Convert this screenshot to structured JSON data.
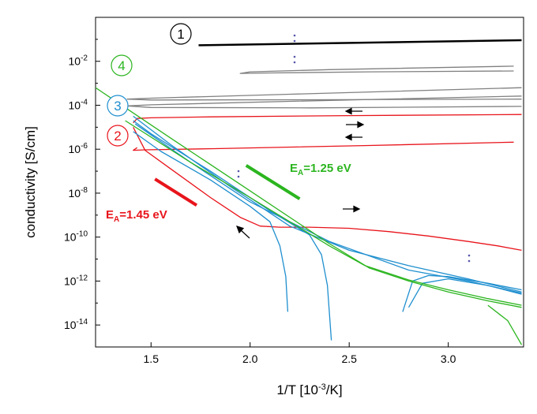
{
  "chart_data": {
    "type": "line",
    "xlabel": "1/T [10",
    "xlabel_sup": "-3",
    "xlabel_tail": "/K]",
    "ylabel": "conductivity [S/cm]",
    "xlim": [
      1.22,
      3.38
    ],
    "ylog": true,
    "ylim_exp": [
      -15,
      0
    ],
    "x_ticks": [
      1.5,
      2.0,
      2.5,
      3.0
    ],
    "x_tick_labels": [
      "1.5",
      "2.0",
      "2.5",
      "3.0"
    ],
    "y_ticks_exp": [
      -2,
      -4,
      -6,
      -8,
      -10,
      -12,
      -14
    ],
    "y_tick_labels": [
      "10",
      "10",
      "10",
      "10",
      "10",
      "10",
      "10"
    ],
    "y_tick_sups": [
      "-2",
      "-4",
      "-6",
      "-8",
      "-10",
      "-12",
      "-14"
    ],
    "colors": {
      "c1": "#000000",
      "gray": "#808080",
      "red": "#e8141b",
      "blue": "#1f8fcf",
      "green": "#2bb51f",
      "dots": "#5555aa"
    },
    "series": [
      {
        "label": "1",
        "color": "black",
        "curves": [
          {
            "x": [
              1.74,
              3.37
            ],
            "y": [
              -1.27,
              -1.04
            ]
          }
        ]
      },
      {
        "color": "gray",
        "curves": [
          {
            "x": [
              3.33,
              2.4,
              2.0,
              1.95,
              2.1,
              2.6,
              3.33
            ],
            "y": [
              -2.22,
              -2.38,
              -2.48,
              -2.55,
              -2.53,
              -2.48,
              -2.44
            ]
          },
          {
            "x": [
              3.37,
              2.2,
              1.5,
              1.38,
              1.5,
              2.3,
              3.37
            ],
            "y": [
              -3.2,
              -3.5,
              -3.68,
              -3.72,
              -3.76,
              -3.75,
              -3.72
            ]
          },
          {
            "x": [
              3.37,
              2.2,
              1.5,
              1.38,
              1.5,
              2.3,
              3.37
            ],
            "y": [
              -3.58,
              -3.82,
              -3.98,
              -4.03,
              -4.1,
              -4.12,
              -4.05
            ]
          }
        ]
      },
      {
        "label": "2",
        "color": "red",
        "curves": [
          {
            "x": [
              3.37,
              2.5,
              1.8,
              1.5,
              1.43,
              1.41
            ],
            "y": [
              -4.42,
              -4.47,
              -4.53,
              -4.57,
              -4.6,
              -4.8
            ]
          },
          {
            "x": [
              3.33,
              2.6,
              1.8,
              1.47,
              1.41,
              1.43
            ],
            "y": [
              -5.68,
              -5.83,
              -5.98,
              -6.03,
              -6.05,
              -5.93
            ]
          },
          {
            "x": [
              1.41,
              1.47,
              1.6,
              1.8,
              1.95,
              2.05,
              2.15,
              2.3,
              2.5,
              2.7,
              2.9,
              3.1,
              3.25,
              3.37
            ],
            "y": [
              -5.0,
              -6.05,
              -6.9,
              -8.2,
              -9.1,
              -9.5,
              -9.55,
              -9.55,
              -9.6,
              -9.75,
              -9.95,
              -10.2,
              -10.4,
              -10.6
            ]
          }
        ]
      },
      {
        "label": "3",
        "color": "blue",
        "curves": [
          {
            "x": [
              1.41,
              1.55,
              1.8,
              2.0,
              2.1,
              2.15,
              2.18,
              2.19
            ],
            "y": [
              -5.2,
              -6.1,
              -7.4,
              -8.6,
              -9.3,
              -10.4,
              -11.8,
              -13.4
            ]
          },
          {
            "x": [
              1.41,
              1.5,
              1.8,
              2.1,
              2.3,
              2.36,
              2.39,
              2.41
            ],
            "y": [
              -4.7,
              -5.3,
              -7.0,
              -8.8,
              -9.9,
              -10.8,
              -12.2,
              -14.7
            ]
          },
          {
            "x": [
              1.41,
              1.6,
              1.9,
              2.2,
              2.5,
              2.8,
              3.1,
              3.37
            ],
            "y": [
              -4.5,
              -5.8,
              -7.7,
              -9.5,
              -10.6,
              -11.3,
              -11.9,
              -12.5
            ]
          },
          {
            "x": [
              1.42,
              1.7,
              2.0,
              2.4,
              2.8,
              3.1,
              3.37
            ],
            "y": [
              -4.85,
              -6.6,
              -8.4,
              -10.2,
              -11.5,
              -12.0,
              -12.55
            ]
          },
          {
            "x": [
              2.77,
              2.82,
              2.9,
              3.0,
              3.2,
              3.37
            ],
            "y": [
              -13.4,
              -12.0,
              -11.75,
              -11.8,
              -12.1,
              -12.4
            ]
          },
          {
            "x": [
              2.8,
              2.87,
              3.0,
              3.2,
              3.37
            ],
            "y": [
              -13.2,
              -12.1,
              -11.9,
              -12.2,
              -12.6
            ]
          }
        ]
      },
      {
        "label": "4",
        "color": "green",
        "curves": [
          {
            "x": [
              1.22,
              1.6,
              2.0,
              2.4,
              2.6,
              2.8,
              3.0,
              3.2,
              3.37
            ],
            "y": [
              -3.2,
              -5.5,
              -7.9,
              -10.3,
              -11.4,
              -12.0,
              -12.5,
              -12.9,
              -13.2
            ]
          },
          {
            "x": [
              1.37,
              1.7,
              2.0,
              2.4,
              2.58,
              2.8,
              3.0,
              3.2,
              3.37
            ],
            "y": [
              -4.7,
              -6.6,
              -8.2,
              -10.4,
              -11.3,
              -11.95,
              -12.4,
              -12.8,
              -13.1
            ]
          },
          {
            "x": [
              3.2,
              3.3,
              3.37
            ],
            "y": [
              -13.1,
              -13.8,
              -14.9
            ]
          }
        ]
      }
    ],
    "fit_lines": [
      {
        "color": "red",
        "x": [
          1.52,
          1.73
        ],
        "y": [
          -7.36,
          -8.55
        ]
      },
      {
        "color": "green",
        "x": [
          1.98,
          2.25
        ],
        "y": [
          -6.74,
          -8.26
        ]
      }
    ],
    "annotations": [
      {
        "text": "E",
        "sub": "A",
        "rest": "=1.25 eV",
        "color": "green"
      },
      {
        "text": "E",
        "sub": "A",
        "rest": "=1.45 eV",
        "color": "red"
      }
    ],
    "circle_labels": [
      "1",
      "4",
      "3",
      "2"
    ]
  }
}
